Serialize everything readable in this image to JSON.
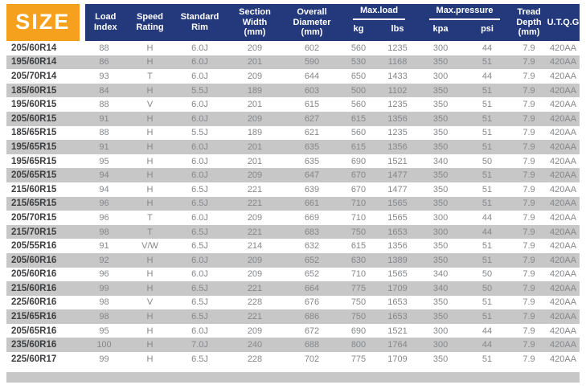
{
  "colors": {
    "accent_orange": "#F6A11D",
    "header_blue": "#24397B",
    "stripe_gray": "#C7C7C7"
  },
  "table": {
    "size_label": "SIZE",
    "headers": {
      "load_index": "Load\nIndex",
      "speed_rating": "Speed\nRating",
      "standard_rim": "Standard\nRim",
      "section_width": "Section\nWidth\n(mm)",
      "overall_diameter": "Overall\nDiameter\n(mm)",
      "max_load": "Max.load",
      "kg": "kg",
      "lbs": "lbs",
      "max_pressure": "Max.pressure",
      "kpa": "kpa",
      "psi": "psi",
      "tread_depth": "Tread\nDepth\n(mm)",
      "utqg": "U.T.Q.G"
    },
    "rows": [
      [
        "205/60R14",
        "88",
        "H",
        "6.0J",
        "209",
        "602",
        "560",
        "1235",
        "300",
        "44",
        "7.9",
        "420AA"
      ],
      [
        "195/60R14",
        "86",
        "H",
        "6.0J",
        "201",
        "590",
        "530",
        "1168",
        "350",
        "51",
        "7.9",
        "420AA"
      ],
      [
        "205/70R14",
        "93",
        "T",
        "6.0J",
        "209",
        "644",
        "650",
        "1433",
        "300",
        "44",
        "7.9",
        "420AA"
      ],
      [
        "185/60R15",
        "84",
        "H",
        "5.5J",
        "189",
        "603",
        "500",
        "1102",
        "350",
        "51",
        "7.9",
        "420AA"
      ],
      [
        "195/60R15",
        "88",
        "V",
        "6.0J",
        "201",
        "615",
        "560",
        "1235",
        "350",
        "51",
        "7.9",
        "420AA"
      ],
      [
        "205/60R15",
        "91",
        "H",
        "6.0J",
        "209",
        "627",
        "615",
        "1356",
        "350",
        "51",
        "7.9",
        "420AA"
      ],
      [
        "185/65R15",
        "88",
        "H",
        "5.5J",
        "189",
        "621",
        "560",
        "1235",
        "350",
        "51",
        "7.9",
        "420AA"
      ],
      [
        "195/65R15",
        "91",
        "H",
        "6.0J",
        "201",
        "635",
        "615",
        "1356",
        "350",
        "51",
        "7.9",
        "420AA"
      ],
      [
        "195/65R15",
        "95",
        "H",
        "6.0J",
        "201",
        "635",
        "690",
        "1521",
        "340",
        "50",
        "7.9",
        "420AA"
      ],
      [
        "205/65R15",
        "94",
        "H",
        "6.0J",
        "209",
        "647",
        "670",
        "1477",
        "350",
        "51",
        "7.9",
        "420AA"
      ],
      [
        "215/60R15",
        "94",
        "H",
        "6.5J",
        "221",
        "639",
        "670",
        "1477",
        "350",
        "51",
        "7.9",
        "420AA"
      ],
      [
        "215/65R15",
        "96",
        "H",
        "6.5J",
        "221",
        "661",
        "710",
        "1565",
        "350",
        "51",
        "7.9",
        "420AA"
      ],
      [
        "205/70R15",
        "96",
        "T",
        "6.0J",
        "209",
        "669",
        "710",
        "1565",
        "300",
        "44",
        "7.9",
        "420AA"
      ],
      [
        "215/70R15",
        "98",
        "T",
        "6.5J",
        "221",
        "683",
        "750",
        "1653",
        "300",
        "44",
        "7.9",
        "420AA"
      ],
      [
        "205/55R16",
        "91",
        "V/W",
        "6.5J",
        "214",
        "632",
        "615",
        "1356",
        "350",
        "51",
        "7.9",
        "420AA"
      ],
      [
        "205/60R16",
        "92",
        "H",
        "6.0J",
        "209",
        "652",
        "630",
        "1389",
        "350",
        "51",
        "7.9",
        "420AA"
      ],
      [
        "205/60R16",
        "96",
        "H",
        "6.0J",
        "209",
        "652",
        "710",
        "1565",
        "340",
        "50",
        "7.9",
        "420AA"
      ],
      [
        "215/60R16",
        "99",
        "H",
        "6.5J",
        "221",
        "664",
        "775",
        "1709",
        "340",
        "50",
        "7.9",
        "420AA"
      ],
      [
        "225/60R16",
        "98",
        "V",
        "6.5J",
        "228",
        "676",
        "750",
        "1653",
        "350",
        "51",
        "7.9",
        "420AA"
      ],
      [
        "215/65R16",
        "98",
        "H",
        "6.5J",
        "221",
        "686",
        "750",
        "1653",
        "350",
        "51",
        "7.9",
        "420AA"
      ],
      [
        "205/65R16",
        "95",
        "H",
        "6.0J",
        "209",
        "672",
        "690",
        "1521",
        "300",
        "44",
        "7.9",
        "420AA"
      ],
      [
        "235/60R16",
        "100",
        "H",
        "7.0J",
        "240",
        "688",
        "800",
        "1764",
        "300",
        "44",
        "7.9",
        "420AA"
      ],
      [
        "225/60R17",
        "99",
        "H",
        "6.5J",
        "228",
        "702",
        "775",
        "1709",
        "350",
        "51",
        "7.9",
        "420AA"
      ]
    ]
  }
}
